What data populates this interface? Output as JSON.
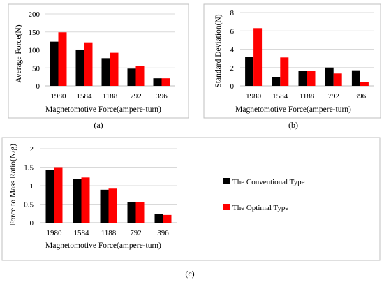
{
  "colors": {
    "conventional": "#000000",
    "optimal": "#ff0000",
    "gridline": "#d9d9d9",
    "frame": "#bfbfbf"
  },
  "legend": {
    "placement": "right",
    "items": [
      "The Conventional Type",
      "The Optimal Type"
    ]
  },
  "chart_data": [
    {
      "id": "a",
      "type": "bar",
      "panel_label": "(a)",
      "xlabel": "Magnetomotive Force(ampere-turn)",
      "ylabel": "Average Force(N)",
      "categories": [
        "1980",
        "1584",
        "1188",
        "792",
        "396"
      ],
      "ylim": [
        0,
        200
      ],
      "yticks": [
        0,
        50,
        100,
        150,
        200
      ],
      "grid": true,
      "series": [
        {
          "name": "The Conventional Type",
          "values": [
            123,
            101,
            77,
            48,
            21
          ]
        },
        {
          "name": "The Optimal Type",
          "values": [
            149,
            121,
            92,
            55,
            21
          ]
        }
      ]
    },
    {
      "id": "b",
      "type": "bar",
      "panel_label": "(b)",
      "xlabel": "Magnetomotive Force(ampere-turn)",
      "ylabel": "Standard Deviation(N)",
      "categories": [
        "1980",
        "1584",
        "1188",
        "792",
        "396"
      ],
      "ylim": [
        0,
        8
      ],
      "yticks": [
        0,
        2,
        4,
        6,
        8
      ],
      "grid": true,
      "series": [
        {
          "name": "The Conventional Type",
          "values": [
            3.2,
            0.95,
            1.6,
            2.0,
            1.7
          ]
        },
        {
          "name": "The Optimal Type",
          "values": [
            6.3,
            3.1,
            1.65,
            1.35,
            0.45
          ]
        }
      ]
    },
    {
      "id": "c",
      "type": "bar",
      "panel_label": "(c)",
      "xlabel": "Magnetomotive Force(ampere-turn)",
      "ylabel": "Force to Mass Ratio(N/g)",
      "categories": [
        "1980",
        "1584",
        "1188",
        "792",
        "396"
      ],
      "ylim": [
        0,
        2
      ],
      "yticks": [
        "0",
        "0.5",
        "1",
        "1.5",
        "2"
      ],
      "grid": true,
      "series": [
        {
          "name": "The Conventional Type",
          "values": [
            1.43,
            1.18,
            0.89,
            0.56,
            0.24
          ]
        },
        {
          "name": "The Optimal Type",
          "values": [
            1.5,
            1.22,
            0.92,
            0.55,
            0.21
          ]
        }
      ]
    }
  ]
}
